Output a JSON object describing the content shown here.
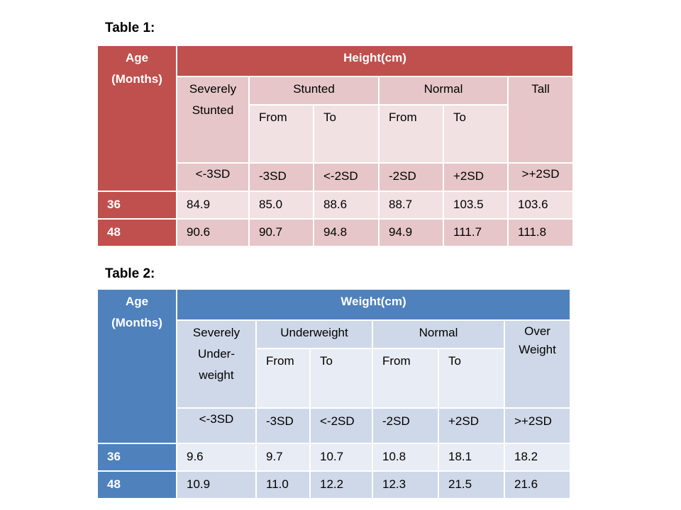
{
  "tables": [
    {
      "caption": "Table 1:",
      "age_line1": "Age",
      "age_line2": "(Months)",
      "measure_label": "Height(cm)",
      "categories": {
        "severe_line1": "Severely",
        "severe_line2": "Stunted",
        "low": "Stunted",
        "normal": "Normal",
        "high": "Tall"
      },
      "from_label": "From",
      "to_label": "To",
      "sd_labels": [
        "<-3SD",
        "-3SD",
        "<-2SD",
        "-2SD",
        "+2SD",
        ">+2SD"
      ],
      "rows": [
        {
          "age": "36",
          "values": [
            "84.9",
            "85.0",
            "88.6",
            "88.7",
            "103.5",
            "103.6"
          ]
        },
        {
          "age": "48",
          "values": [
            "90.6",
            "90.7",
            "94.8",
            "94.9",
            "111.7",
            "111.8"
          ]
        }
      ],
      "colors": {
        "header": "#c0504d",
        "medium": "#e6c6c8",
        "light": "#f2e1e2"
      }
    },
    {
      "caption": "Table 2:",
      "age_line1": "Age",
      "age_line2": "(Months)",
      "measure_label": "Weight(cm)",
      "categories": {
        "severe_line1": "Severely",
        "severe_line2": "Under-",
        "severe_line3": "weight",
        "low": "Underweight",
        "normal": "Normal",
        "high_line1": "Over",
        "high_line2": "Weight"
      },
      "from_label": "From",
      "to_label": "To",
      "sd_labels": [
        "<-3SD",
        "-3SD",
        "<-2SD",
        "-2SD",
        "+2SD",
        ">+2SD"
      ],
      "rows": [
        {
          "age": "36",
          "values": [
            "9.6",
            "9.7",
            "10.7",
            "10.8",
            "18.1",
            "18.2"
          ]
        },
        {
          "age": "48",
          "values": [
            "10.9",
            "11.0",
            "12.2",
            "12.3",
            "21.5",
            "21.6"
          ]
        }
      ],
      "colors": {
        "header": "#4f81bd",
        "medium": "#cfd8e8",
        "light": "#e8ecf4"
      }
    }
  ]
}
